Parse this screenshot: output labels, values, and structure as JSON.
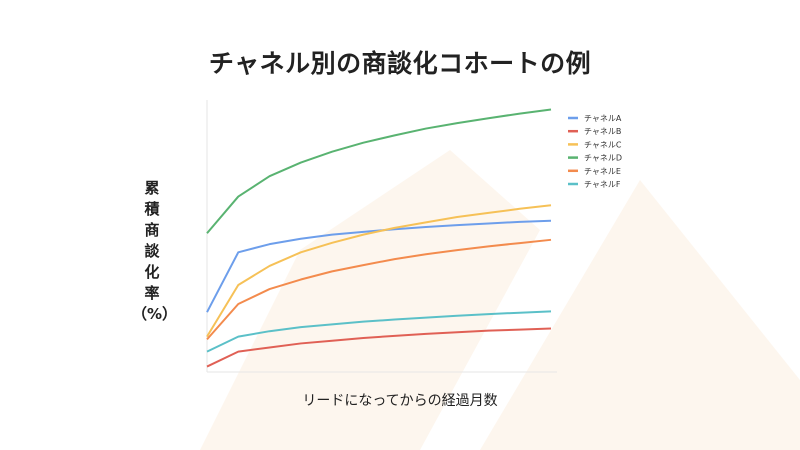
{
  "colors": {
    "background": "#ffffff",
    "decoration": "#fdf6ee",
    "axis": "#e6e6e6"
  },
  "chart_data": {
    "type": "line",
    "title": "チャネル別の商談化コホートの例",
    "ylabel": "累\n積\n商\n談\n化\n率\n（%）",
    "xlabel": "リードになってからの経過月数",
    "x": [
      1,
      2,
      3,
      4,
      5,
      6,
      7,
      8,
      9,
      10,
      11,
      12
    ],
    "ylim": [
      0,
      100
    ],
    "grid": false,
    "legend_position": "right",
    "series": [
      {
        "name": "チャネルA",
        "color": "#6d9eeb",
        "values": [
          22,
          44,
          47,
          49,
          50.5,
          51.5,
          52.5,
          53.3,
          54,
          54.6,
          55.2,
          55.6
        ]
      },
      {
        "name": "チャネルB",
        "color": "#e06055",
        "values": [
          2,
          7.5,
          9,
          10.5,
          11.5,
          12.5,
          13.3,
          14,
          14.6,
          15.2,
          15.6,
          16
        ]
      },
      {
        "name": "チャネルC",
        "color": "#f6c157",
        "values": [
          13,
          32,
          39,
          44,
          47.5,
          50.5,
          53,
          55,
          57,
          58.5,
          60,
          61.3
        ]
      },
      {
        "name": "チャネルD",
        "color": "#59b371",
        "values": [
          51,
          64.5,
          72,
          77,
          81,
          84.3,
          87,
          89.5,
          91.5,
          93.3,
          95,
          96.5
        ]
      },
      {
        "name": "チャネルE",
        "color": "#f38b4d",
        "values": [
          12,
          25,
          30.5,
          34,
          37,
          39.3,
          41.5,
          43.3,
          44.8,
          46.2,
          47.4,
          48.6
        ]
      },
      {
        "name": "チャネルF",
        "color": "#5bc0c8",
        "values": [
          7.5,
          13,
          15,
          16.5,
          17.5,
          18.5,
          19.3,
          20,
          20.7,
          21.3,
          21.8,
          22.3
        ]
      }
    ]
  }
}
